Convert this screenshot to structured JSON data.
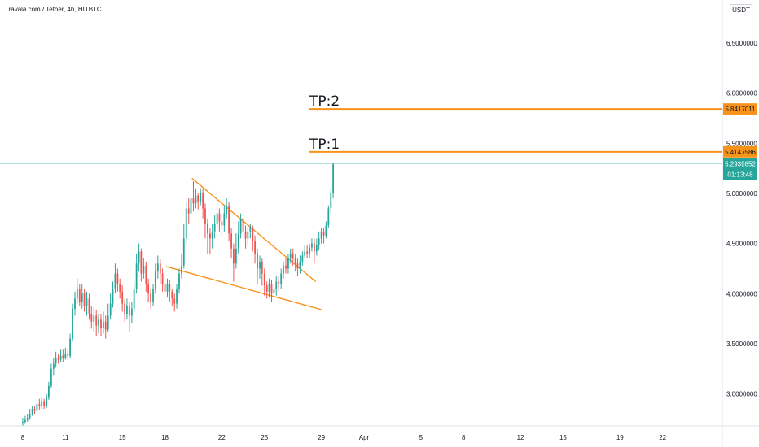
{
  "header": {
    "symbol_title": "Travala.com / Tether, 4h, HITBTC",
    "unit_badge": "USDT"
  },
  "colors": {
    "up": "#26a69a",
    "down": "#ef5350",
    "target_line": "#f7931a",
    "pattern_line": "#f7931a",
    "price_line": "#26a69a",
    "axis_text": "#131722",
    "axis_border": "#e0e3eb"
  },
  "chart_data": {
    "type": "candlestick",
    "title": "Travala.com / Tether, 4h, HITBTC",
    "y_axis": {
      "ticks": [
        3.0,
        3.5,
        4.0,
        4.5,
        5.0,
        5.5,
        6.0,
        6.5
      ],
      "tick_labels": [
        "3.0000000",
        "3.5000000",
        "4.0000000",
        "4.5000000",
        "5.0000000",
        "5.5000000",
        "6.0000000",
        "6.5000000"
      ],
      "range": [
        2.68,
        6.93
      ]
    },
    "x_axis": {
      "tick_labels": [
        "8",
        "11",
        "15",
        "18",
        "22",
        "25",
        "29",
        "Apr",
        "5",
        "8",
        "12",
        "15",
        "19",
        "22"
      ],
      "tick_days": [
        8,
        11,
        15,
        18,
        22,
        25,
        29,
        32,
        36,
        39,
        43,
        46,
        50,
        53
      ],
      "range_days": [
        6.4,
        57.2
      ]
    },
    "candles": [
      [
        8.0,
        2.72,
        2.72,
        2.68,
        2.76
      ],
      [
        8.17,
        2.72,
        2.74,
        2.7,
        2.78
      ],
      [
        8.33,
        2.74,
        2.76,
        2.72,
        2.8
      ],
      [
        8.5,
        2.76,
        2.8,
        2.74,
        2.85
      ],
      [
        8.67,
        2.8,
        2.85,
        2.78,
        2.88
      ],
      [
        8.83,
        2.85,
        2.83,
        2.8,
        2.88
      ],
      [
        9.0,
        2.83,
        2.9,
        2.82,
        2.95
      ],
      [
        9.17,
        2.9,
        2.88,
        2.84,
        2.95
      ],
      [
        9.33,
        2.88,
        2.92,
        2.85,
        2.96
      ],
      [
        9.5,
        2.92,
        2.88,
        2.85,
        2.95
      ],
      [
        9.67,
        2.88,
        2.96,
        2.86,
        3.0
      ],
      [
        9.83,
        2.96,
        3.08,
        2.94,
        3.12
      ],
      [
        10.0,
        3.08,
        3.25,
        3.06,
        3.3
      ],
      [
        10.17,
        3.25,
        3.3,
        3.18,
        3.36
      ],
      [
        10.33,
        3.3,
        3.36,
        3.26,
        3.42
      ],
      [
        10.5,
        3.36,
        3.34,
        3.3,
        3.4
      ],
      [
        10.67,
        3.34,
        3.38,
        3.32,
        3.44
      ],
      [
        10.83,
        3.38,
        3.36,
        3.32,
        3.44
      ],
      [
        11.0,
        3.36,
        3.4,
        3.34,
        3.46
      ],
      [
        11.17,
        3.4,
        3.38,
        3.34,
        3.44
      ],
      [
        11.33,
        3.38,
        3.55,
        3.36,
        3.6
      ],
      [
        11.5,
        3.55,
        3.85,
        3.52,
        3.9
      ],
      [
        11.67,
        3.85,
        3.95,
        3.78,
        4.02
      ],
      [
        11.83,
        3.95,
        4.05,
        3.9,
        4.15
      ],
      [
        12.0,
        4.05,
        3.92,
        3.88,
        4.1
      ],
      [
        12.17,
        3.92,
        4.0,
        3.85,
        4.1
      ],
      [
        12.33,
        4.0,
        3.88,
        3.82,
        4.05
      ],
      [
        12.5,
        3.88,
        3.95,
        3.78,
        4.02
      ],
      [
        12.67,
        3.95,
        3.8,
        3.74,
        4.0
      ],
      [
        12.83,
        3.8,
        3.72,
        3.65,
        3.88
      ],
      [
        13.0,
        3.72,
        3.78,
        3.62,
        3.86
      ],
      [
        13.17,
        3.78,
        3.68,
        3.58,
        3.84
      ],
      [
        13.33,
        3.68,
        3.74,
        3.6,
        3.8
      ],
      [
        13.5,
        3.74,
        3.66,
        3.58,
        3.8
      ],
      [
        13.67,
        3.66,
        3.72,
        3.6,
        3.82
      ],
      [
        13.83,
        3.72,
        3.64,
        3.55,
        3.78
      ],
      [
        14.0,
        3.64,
        3.78,
        3.62,
        3.9
      ],
      [
        14.17,
        3.78,
        3.9,
        3.74,
        4.0
      ],
      [
        14.33,
        3.9,
        4.05,
        3.86,
        4.12
      ],
      [
        14.5,
        4.05,
        4.2,
        4.0,
        4.3
      ],
      [
        14.67,
        4.2,
        4.1,
        4.02,
        4.25
      ],
      [
        14.83,
        4.1,
        4.02,
        3.95,
        4.15
      ],
      [
        15.0,
        4.02,
        3.9,
        3.82,
        4.08
      ],
      [
        15.17,
        3.9,
        3.8,
        3.72,
        3.95
      ],
      [
        15.33,
        3.8,
        3.88,
        3.75,
        3.95
      ],
      [
        15.5,
        3.88,
        3.78,
        3.62,
        3.92
      ],
      [
        15.67,
        3.78,
        3.85,
        3.7,
        3.92
      ],
      [
        15.83,
        3.85,
        4.05,
        3.82,
        4.12
      ],
      [
        16.0,
        4.05,
        4.3,
        4.0,
        4.4
      ],
      [
        16.17,
        4.3,
        4.42,
        4.22,
        4.5
      ],
      [
        16.33,
        4.42,
        4.2,
        4.12,
        4.45
      ],
      [
        16.5,
        4.2,
        4.28,
        4.15,
        4.35
      ],
      [
        16.67,
        4.28,
        4.1,
        4.02,
        4.32
      ],
      [
        16.83,
        4.1,
        4.0,
        3.92,
        4.15
      ],
      [
        17.0,
        4.0,
        3.92,
        3.85,
        4.05
      ],
      [
        17.17,
        3.92,
        4.05,
        3.88,
        4.1
      ],
      [
        17.33,
        4.05,
        4.22,
        4.0,
        4.3
      ],
      [
        17.5,
        4.22,
        4.3,
        4.15,
        4.38
      ],
      [
        17.67,
        4.3,
        4.2,
        4.1,
        4.34
      ],
      [
        17.83,
        4.2,
        4.1,
        4.02,
        4.25
      ],
      [
        18.0,
        4.1,
        4.02,
        3.95,
        4.15
      ],
      [
        18.17,
        4.02,
        4.1,
        3.96,
        4.15
      ],
      [
        18.33,
        4.1,
        4.02,
        3.92,
        4.14
      ],
      [
        18.5,
        4.02,
        3.95,
        3.88,
        4.05
      ],
      [
        18.67,
        3.95,
        3.9,
        3.82,
        4.0
      ],
      [
        18.83,
        3.9,
        4.05,
        3.85,
        4.1
      ],
      [
        19.0,
        4.05,
        4.2,
        4.0,
        4.25
      ],
      [
        19.17,
        4.2,
        4.28,
        4.15,
        4.4
      ],
      [
        19.33,
        4.28,
        4.55,
        4.25,
        4.7
      ],
      [
        19.5,
        4.55,
        4.85,
        4.5,
        4.92
      ],
      [
        19.67,
        4.85,
        4.8,
        4.7,
        4.95
      ],
      [
        19.83,
        4.8,
        4.95,
        4.75,
        5.02
      ],
      [
        20.0,
        4.95,
        4.9,
        4.82,
        5.12
      ],
      [
        20.17,
        4.9,
        4.98,
        4.85,
        5.05
      ],
      [
        20.33,
        4.98,
        4.92,
        4.84,
        5.0
      ],
      [
        20.5,
        4.92,
        5.0,
        4.88,
        5.05
      ],
      [
        20.67,
        5.0,
        4.85,
        4.75,
        5.04
      ],
      [
        20.83,
        4.85,
        4.7,
        4.55,
        4.9
      ],
      [
        21.0,
        4.7,
        4.6,
        4.4,
        4.75
      ],
      [
        21.17,
        4.6,
        4.55,
        4.4,
        4.65
      ],
      [
        21.33,
        4.55,
        4.62,
        4.45,
        4.7
      ],
      [
        21.5,
        4.62,
        4.7,
        4.55,
        4.78
      ],
      [
        21.67,
        4.7,
        4.8,
        4.65,
        4.9
      ],
      [
        21.83,
        4.8,
        4.72,
        4.62,
        4.85
      ],
      [
        22.0,
        4.72,
        4.68,
        4.58,
        4.78
      ],
      [
        22.17,
        4.68,
        4.8,
        4.62,
        4.88
      ],
      [
        22.33,
        4.8,
        4.88,
        4.75,
        4.95
      ],
      [
        22.5,
        4.88,
        4.6,
        4.52,
        4.92
      ],
      [
        22.67,
        4.6,
        4.45,
        4.35,
        4.65
      ],
      [
        22.83,
        4.45,
        4.3,
        4.12,
        4.5
      ],
      [
        23.0,
        4.3,
        4.45,
        4.25,
        4.6
      ],
      [
        23.17,
        4.45,
        4.6,
        4.4,
        4.72
      ],
      [
        23.33,
        4.6,
        4.75,
        4.55,
        4.8
      ],
      [
        23.5,
        4.75,
        4.62,
        4.5,
        4.78
      ],
      [
        23.67,
        4.62,
        4.55,
        4.45,
        4.68
      ],
      [
        23.83,
        4.55,
        4.62,
        4.48,
        4.66
      ],
      [
        24.0,
        4.62,
        4.66,
        4.55,
        4.7
      ],
      [
        24.17,
        4.66,
        4.52,
        4.42,
        4.68
      ],
      [
        24.33,
        4.52,
        4.4,
        4.3,
        4.58
      ],
      [
        24.5,
        4.4,
        4.25,
        4.1,
        4.45
      ],
      [
        24.67,
        4.25,
        4.32,
        4.15,
        4.38
      ],
      [
        24.83,
        4.32,
        4.2,
        4.08,
        4.35
      ],
      [
        25.0,
        4.2,
        4.08,
        3.98,
        4.25
      ],
      [
        25.17,
        4.08,
        4.02,
        3.95,
        4.12
      ],
      [
        25.33,
        4.02,
        4.1,
        3.96,
        4.15
      ],
      [
        25.5,
        4.1,
        4.0,
        3.92,
        4.14
      ],
      [
        25.67,
        4.0,
        4.05,
        3.92,
        4.1
      ],
      [
        25.83,
        4.05,
        4.12,
        3.98,
        4.18
      ],
      [
        26.0,
        4.12,
        4.1,
        4.02,
        4.18
      ],
      [
        26.17,
        4.1,
        4.2,
        4.05,
        4.25
      ],
      [
        26.33,
        4.2,
        4.28,
        4.15,
        4.32
      ],
      [
        26.5,
        4.28,
        4.25,
        4.2,
        4.35
      ],
      [
        26.67,
        4.25,
        4.35,
        4.2,
        4.4
      ],
      [
        26.83,
        4.35,
        4.4,
        4.3,
        4.45
      ],
      [
        27.0,
        4.4,
        4.35,
        4.28,
        4.45
      ],
      [
        27.17,
        4.35,
        4.3,
        4.22,
        4.4
      ],
      [
        27.33,
        4.3,
        4.25,
        4.18,
        4.35
      ],
      [
        27.5,
        4.25,
        4.32,
        4.2,
        4.38
      ],
      [
        27.67,
        4.32,
        4.38,
        4.28,
        4.42
      ],
      [
        27.83,
        4.38,
        4.42,
        4.35,
        4.48
      ],
      [
        28.0,
        4.42,
        4.4,
        4.35,
        4.48
      ],
      [
        28.17,
        4.4,
        4.46,
        4.36,
        4.5
      ],
      [
        28.33,
        4.46,
        4.5,
        4.42,
        4.55
      ],
      [
        28.5,
        4.5,
        4.42,
        4.3,
        4.55
      ],
      [
        28.67,
        4.42,
        4.48,
        4.38,
        4.55
      ],
      [
        28.83,
        4.48,
        4.55,
        4.44,
        4.62
      ],
      [
        29.0,
        4.55,
        4.62,
        4.5,
        4.65
      ],
      [
        29.17,
        4.62,
        4.58,
        4.5,
        4.66
      ],
      [
        29.33,
        4.58,
        4.68,
        4.55,
        4.72
      ],
      [
        29.5,
        4.68,
        4.85,
        4.65,
        4.88
      ],
      [
        29.67,
        4.85,
        5.0,
        4.8,
        5.05
      ],
      [
        29.83,
        5.0,
        5.29,
        4.95,
        5.3
      ]
    ],
    "annotations": {
      "target_lines": [
        {
          "label": "TP:2",
          "value": 5.8417011,
          "price_tag": "5.8417011"
        },
        {
          "label": "TP:1",
          "value": 5.4147586,
          "price_tag": "5.4147586"
        }
      ],
      "current_price": {
        "value": 5.2939852,
        "price_tag": "5.2939852",
        "countdown": "01:13:48"
      },
      "falling_wedge": {
        "upper_line": [
          [
            19.9,
            5.15
          ],
          [
            28.6,
            4.12
          ]
        ],
        "lower_line": [
          [
            18.1,
            4.27
          ],
          [
            29.0,
            3.84
          ]
        ]
      }
    }
  }
}
